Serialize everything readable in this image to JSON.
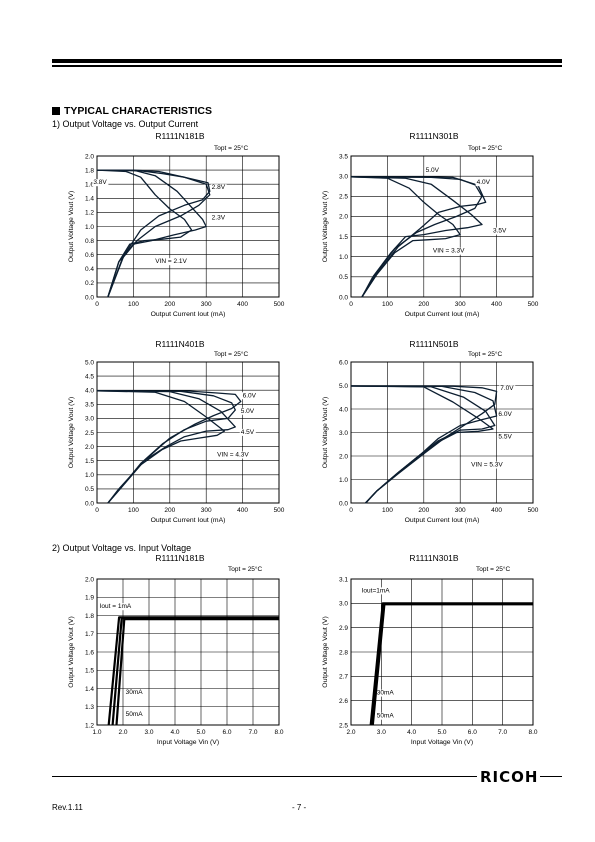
{
  "section_title": "TYPICAL CHARACTERISTICS",
  "sub1": "1)   Output Voltage vs. Output Current",
  "sub2": "2)   Output Voltage vs. Input Voltage",
  "footer": {
    "rev": "Rev.1.11",
    "page": "- 7 -",
    "logo": "RICOH"
  },
  "chart_data": [
    {
      "type": "line",
      "title": "R1111N181B",
      "condition": "Topt = 25°C",
      "xlabel": "Output Current Iout (mA)",
      "ylabel": "Output Voltage Vout (V)",
      "xlim": [
        0,
        500
      ],
      "ylim": [
        0,
        2.0
      ],
      "xticks": [
        "0",
        "100",
        "200",
        "300",
        "400",
        "500"
      ],
      "yticks": [
        "0.0",
        "0.2",
        "0.4",
        "0.6",
        "0.8",
        "1.0",
        "1.2",
        "1.4",
        "1.6",
        "1.8",
        "2.0"
      ],
      "series": [
        {
          "name": "3.8V",
          "label_at": [
            -10,
            1.6
          ],
          "x": [
            0,
            100,
            170,
            240,
            300,
            310,
            280,
            230,
            160,
            110,
            70,
            30
          ],
          "y": [
            1.8,
            1.8,
            1.78,
            1.7,
            1.6,
            1.45,
            1.3,
            1.15,
            1.0,
            0.8,
            0.55,
            0.0
          ]
        },
        {
          "name": "2.8V",
          "label_at": [
            315,
            1.53
          ],
          "x": [
            0,
            120,
            180,
            240,
            305,
            310,
            290,
            240,
            170,
            120,
            75,
            30
          ],
          "y": [
            1.8,
            1.79,
            1.75,
            1.7,
            1.62,
            1.5,
            1.38,
            1.3,
            1.15,
            0.95,
            0.6,
            0.0
          ]
        },
        {
          "name": "2.3V",
          "label_at": [
            315,
            1.1
          ],
          "x": [
            0,
            100,
            160,
            220,
            290,
            300,
            270,
            210,
            150,
            100,
            60,
            30
          ],
          "y": [
            1.8,
            1.8,
            1.72,
            1.5,
            1.1,
            1.0,
            0.95,
            0.88,
            0.8,
            0.75,
            0.5,
            0.0
          ]
        },
        {
          "name": "VIN = 2.1V",
          "label_at": [
            160,
            0.48
          ],
          "x": [
            0,
            80,
            120,
            160,
            200,
            240,
            260,
            230,
            180,
            130,
            90,
            60,
            30
          ],
          "y": [
            1.8,
            1.78,
            1.7,
            1.45,
            1.25,
            1.1,
            0.95,
            0.85,
            0.82,
            0.8,
            0.75,
            0.5,
            0.0
          ]
        }
      ]
    },
    {
      "type": "line",
      "title": "R1111N301B",
      "condition": "Topt = 25°C",
      "xlabel": "Output Current Iout (mA)",
      "ylabel": "Output Voltage Vout (V)",
      "xlim": [
        0,
        500
      ],
      "ylim": [
        0,
        3.5
      ],
      "xticks": [
        "0",
        "100",
        "200",
        "300",
        "400",
        "500"
      ],
      "yticks": [
        "0.0",
        "0.5",
        "1.0",
        "1.5",
        "2.0",
        "2.5",
        "3.0",
        "3.5"
      ],
      "series": [
        {
          "name": "5.0V",
          "label_at": [
            205,
            3.1
          ],
          "x": [
            0,
            200,
            280,
            340,
            360,
            340,
            290,
            230,
            180,
            120,
            70,
            30
          ],
          "y": [
            2.98,
            2.98,
            2.97,
            2.8,
            2.5,
            2.2,
            2.0,
            1.8,
            1.6,
            1.2,
            0.6,
            0.0
          ]
        },
        {
          "name": "4.0V",
          "label_at": [
            345,
            2.8
          ],
          "x": [
            0,
            220,
            300,
            350,
            370,
            350,
            300,
            240,
            190,
            130,
            75,
            30
          ],
          "y": [
            2.98,
            2.97,
            2.92,
            2.75,
            2.35,
            2.3,
            2.25,
            2.1,
            1.7,
            1.25,
            0.62,
            0.0
          ]
        },
        {
          "name": "3.5V",
          "label_at": [
            390,
            1.6
          ],
          "x": [
            0,
            150,
            220,
            280,
            330,
            360,
            320,
            260,
            200,
            150,
            110,
            60,
            30
          ],
          "y": [
            2.98,
            2.95,
            2.8,
            2.4,
            2.05,
            1.8,
            1.72,
            1.65,
            1.55,
            1.5,
            1.1,
            0.5,
            0.0
          ]
        },
        {
          "name": "VIN = 3.3V",
          "label_at": [
            225,
            1.1
          ],
          "x": [
            0,
            100,
            160,
            200,
            240,
            280,
            300,
            260,
            210,
            170,
            120,
            70,
            30
          ],
          "y": [
            2.98,
            2.95,
            2.7,
            2.35,
            2.05,
            1.8,
            1.55,
            1.45,
            1.42,
            1.4,
            1.1,
            0.55,
            0.0
          ]
        }
      ]
    },
    {
      "type": "line",
      "title": "R1111N401B",
      "condition": "Topt = 25°C",
      "xlabel": "Output Current Iout (mA)",
      "ylabel": "Output Voltage Vout (V)",
      "xlim": [
        0,
        500
      ],
      "ylim": [
        0,
        5.0
      ],
      "xticks": [
        "0",
        "100",
        "200",
        "300",
        "400",
        "500"
      ],
      "yticks": [
        "0.0",
        "0.5",
        "1.0",
        "1.5",
        "2.0",
        "2.5",
        "3.0",
        "3.5",
        "4.0",
        "4.5",
        "5.0"
      ],
      "series": [
        {
          "name": "6.0V",
          "label_at": [
            400,
            3.75
          ],
          "x": [
            0,
            250,
            330,
            380,
            395,
            370,
            320,
            270,
            200,
            130,
            60,
            30
          ],
          "y": [
            3.98,
            3.97,
            3.9,
            3.85,
            3.6,
            3.35,
            3.1,
            2.8,
            2.3,
            1.5,
            0.45,
            0.0
          ]
        },
        {
          "name": "5.0V",
          "label_at": [
            395,
            3.2
          ],
          "x": [
            0,
            230,
            320,
            370,
            380,
            360,
            300,
            240,
            180,
            120,
            60,
            30
          ],
          "y": [
            3.98,
            3.96,
            3.8,
            3.55,
            3.3,
            3.0,
            2.9,
            2.6,
            2.1,
            1.4,
            0.45,
            0.0
          ]
        },
        {
          "name": "4.5V",
          "label_at": [
            395,
            2.45
          ],
          "x": [
            0,
            200,
            280,
            340,
            380,
            360,
            300,
            240,
            190,
            130,
            70,
            30
          ],
          "y": [
            3.98,
            3.95,
            3.7,
            3.25,
            2.7,
            2.6,
            2.55,
            2.35,
            2.0,
            1.5,
            0.6,
            0.0
          ]
        },
        {
          "name": "VIN = 4.3V",
          "label_at": [
            330,
            1.65
          ],
          "x": [
            0,
            160,
            240,
            300,
            350,
            330,
            280,
            230,
            180,
            120,
            60,
            30
          ],
          "y": [
            3.98,
            3.93,
            3.6,
            3.05,
            2.55,
            2.4,
            2.3,
            2.2,
            1.9,
            1.35,
            0.5,
            0.0
          ]
        }
      ]
    },
    {
      "type": "line",
      "title": "R1111N501B",
      "condition": "Topt = 25°C",
      "xlabel": "Output Current Iout (mA)",
      "ylabel": "Output Voltage Vout (V)",
      "xlim": [
        0,
        500
      ],
      "ylim": [
        0,
        6.0
      ],
      "xticks": [
        "0",
        "100",
        "200",
        "300",
        "400",
        "500"
      ],
      "yticks": [
        "0.0",
        "1.0",
        "2.0",
        "3.0",
        "4.0",
        "5.0",
        "6.0"
      ],
      "series": [
        {
          "name": "7.0V",
          "label_at": [
            410,
            4.8
          ],
          "x": [
            0,
            280,
            360,
            400,
            395,
            360,
            310,
            260,
            200,
            130,
            70,
            40
          ],
          "y": [
            4.98,
            4.97,
            4.9,
            4.75,
            4.2,
            3.8,
            3.3,
            2.8,
            2.1,
            1.25,
            0.5,
            0.0
          ]
        },
        {
          "name": "6.0V",
          "label_at": [
            405,
            3.7
          ],
          "x": [
            0,
            250,
            340,
            390,
            400,
            360,
            300,
            240,
            190,
            130,
            70,
            40
          ],
          "y": [
            4.98,
            4.96,
            4.7,
            4.35,
            3.7,
            3.55,
            3.3,
            2.75,
            2.05,
            1.3,
            0.5,
            0.0
          ]
        },
        {
          "name": "5.5V",
          "label_at": [
            405,
            2.75
          ],
          "x": [
            0,
            220,
            310,
            370,
            395,
            360,
            300,
            240,
            190,
            130,
            70,
            40
          ],
          "y": [
            4.98,
            4.95,
            4.5,
            3.9,
            3.3,
            3.15,
            3.1,
            2.65,
            2.05,
            1.3,
            0.5,
            0.0
          ]
        },
        {
          "name": "VIN = 5.3V",
          "label_at": [
            330,
            1.55
          ],
          "x": [
            0,
            200,
            280,
            350,
            390,
            350,
            290,
            240,
            190,
            130,
            70,
            40
          ],
          "y": [
            4.98,
            4.94,
            4.3,
            3.6,
            3.15,
            3.05,
            3.0,
            2.6,
            2.05,
            1.3,
            0.5,
            0.0
          ]
        }
      ]
    },
    {
      "type": "line",
      "title": "R1111N181B",
      "condition": "Topt = 25°C",
      "xlabel": "Input Voltage Vin (V)",
      "ylabel": "Output Voltage Vout (V)",
      "xlim": [
        1.0,
        8.0
      ],
      "ylim": [
        1.2,
        2.0
      ],
      "xticks": [
        "1.0",
        "2.0",
        "3.0",
        "4.0",
        "5.0",
        "6.0",
        "7.0",
        "8.0"
      ],
      "yticks": [
        "1.2",
        "1.3",
        "1.4",
        "1.5",
        "1.6",
        "1.7",
        "1.8",
        "1.9",
        "2.0"
      ],
      "series": [
        {
          "name": "Iout = 1mA",
          "label_at": [
            1.1,
            1.84
          ],
          "x": [
            1.45,
            1.85,
            8.0
          ],
          "y": [
            1.2,
            1.79,
            1.79
          ]
        },
        {
          "name": "30mA",
          "label_at": [
            2.1,
            1.37
          ],
          "x": [
            1.6,
            1.95,
            8.0
          ],
          "y": [
            1.2,
            1.785,
            1.785
          ]
        },
        {
          "name": "50mA",
          "label_at": [
            2.1,
            1.25
          ],
          "x": [
            1.75,
            2.05,
            8.0
          ],
          "y": [
            1.2,
            1.78,
            1.78
          ]
        }
      ]
    },
    {
      "type": "line",
      "title": "R1111N301B",
      "condition": "Topt = 25°C",
      "xlabel": "Input Voltage Vin (V)",
      "ylabel": "Output Voltage Vout (V)",
      "xlim": [
        2.0,
        8.0
      ],
      "ylim": [
        2.5,
        3.1
      ],
      "xticks": [
        "2.0",
        "3.0",
        "4.0",
        "5.0",
        "6.0",
        "7.0",
        "8.0"
      ],
      "yticks": [
        "2.5",
        "2.6",
        "2.7",
        "2.8",
        "2.9",
        "3.0",
        "3.1"
      ],
      "series": [
        {
          "name": "Iout=1mA",
          "label_at": [
            2.35,
            3.045
          ],
          "x": [
            2.65,
            3.05,
            8.0
          ],
          "y": [
            2.5,
            3.0,
            3.0
          ]
        },
        {
          "name": "30mA",
          "label_at": [
            2.85,
            2.625
          ],
          "x": [
            2.7,
            3.08,
            8.0
          ],
          "y": [
            2.5,
            2.998,
            2.998
          ]
        },
        {
          "name": "50mA",
          "label_at": [
            2.85,
            2.53
          ],
          "x": [
            2.72,
            3.1,
            8.0
          ],
          "y": [
            2.5,
            2.996,
            2.996
          ]
        }
      ]
    }
  ]
}
